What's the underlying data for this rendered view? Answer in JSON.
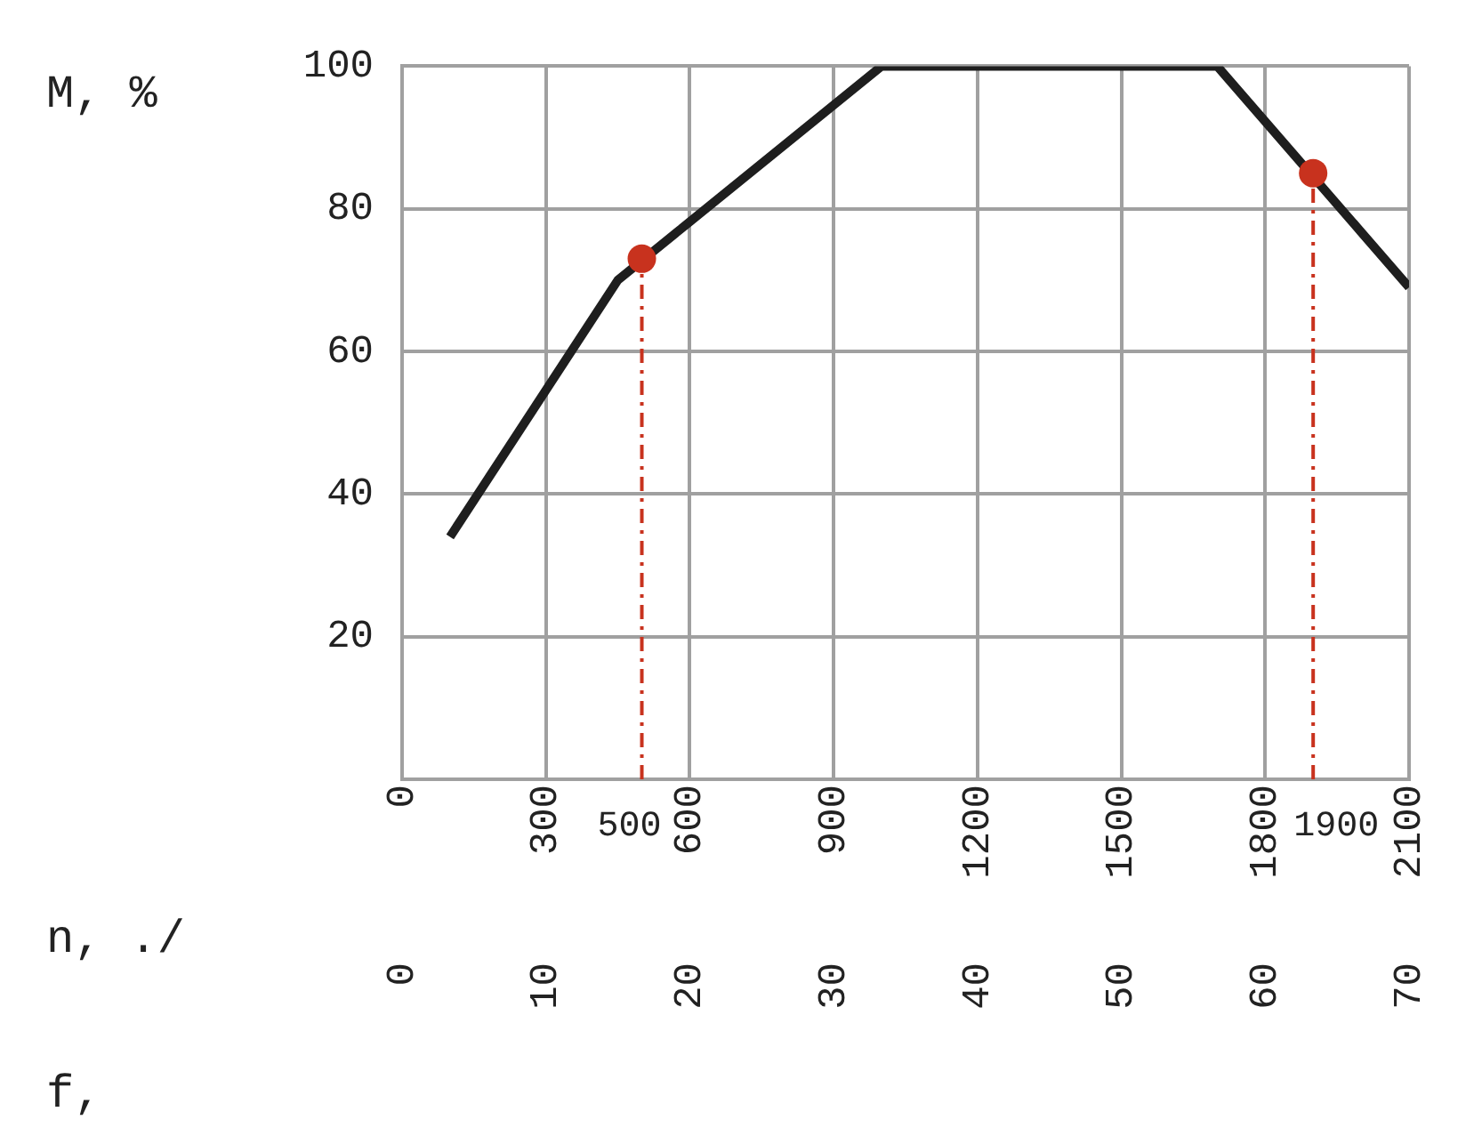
{
  "chart_data": {
    "type": "line",
    "xlabel": "n, ./",
    "x2label": "f,",
    "ylabel": "M, %",
    "xlim": [
      0,
      2100
    ],
    "xticks": [
      0,
      300,
      600,
      900,
      1200,
      1500,
      1800,
      2100
    ],
    "x2lim": [
      0,
      70
    ],
    "x2ticks": [
      0,
      10,
      20,
      30,
      40,
      50,
      60,
      70
    ],
    "ylim": [
      0,
      100
    ],
    "yticks": [
      20,
      40,
      60,
      80,
      100
    ],
    "grid": true,
    "legend": false,
    "series": [
      {
        "x": [
          100,
          450,
          1000,
          1700,
          2100
        ],
        "values": [
          34,
          70,
          100,
          100,
          69
        ],
        "color": "#1e1e1e",
        "marker": "none",
        "line_style": "solid"
      },
      {
        "type": "scatter",
        "x": [
          500,
          1900
        ],
        "values": [
          73,
          85
        ],
        "color": "#c8321e",
        "marker": "circle"
      }
    ],
    "ref_lines": [
      {
        "axis": "x",
        "value": 500,
        "label": "500",
        "color": "#c8321e",
        "line_style": "dashed"
      },
      {
        "axis": "x",
        "value": 1900,
        "label": "1900",
        "color": "#c8321e",
        "line_style": "dashed"
      }
    ]
  }
}
